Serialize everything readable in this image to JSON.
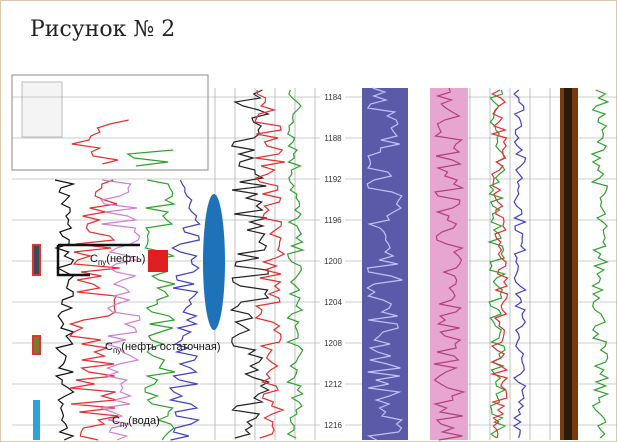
{
  "title": "Рисунок № 2",
  "depth_labels": [
    1184,
    1188,
    1192,
    1196,
    1200,
    1204,
    1208,
    1212,
    1216
  ],
  "annotations": [
    {
      "symbol": "C",
      "subscript": "пу",
      "text": "(нефть)"
    },
    {
      "symbol": "C",
      "subscript": "пу",
      "text": "(нефть остаточная)"
    },
    {
      "symbol": "C",
      "subscript": "пу",
      "text": "(вода)"
    }
  ]
}
